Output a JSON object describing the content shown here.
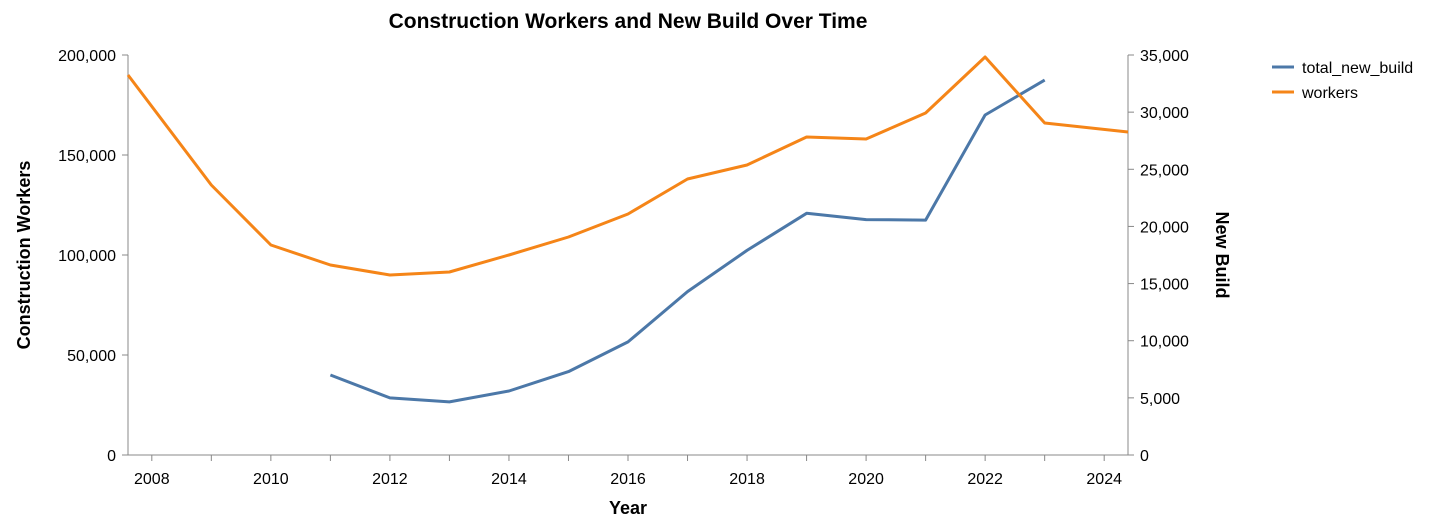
{
  "chart_data": {
    "type": "line",
    "title": "Construction Workers and New Build Over Time",
    "xlabel": "Year",
    "ylabel_left": "Construction Workers",
    "ylabel_right": "New Build",
    "xlim": [
      2007.6,
      2024.4
    ],
    "ylim_left": [
      0,
      200000
    ],
    "ylim_right": [
      0,
      35000
    ],
    "x_ticks": [
      2008,
      2010,
      2012,
      2014,
      2016,
      2018,
      2020,
      2022,
      2024
    ],
    "x_tick_labels": [
      "2008",
      "2010",
      "2012",
      "2014",
      "2016",
      "2018",
      "2020",
      "2022",
      "2024"
    ],
    "y_left_ticks": [
      0,
      50000,
      100000,
      150000,
      200000
    ],
    "y_left_tick_labels": [
      "0",
      "50,000",
      "100,000",
      "150,000",
      "200,000"
    ],
    "y_right_ticks": [
      0,
      5000,
      10000,
      15000,
      20000,
      25000,
      30000,
      35000
    ],
    "y_right_tick_labels": [
      "0",
      "5,000",
      "10,000",
      "15,000",
      "20,000",
      "25,000",
      "30,000",
      "35,000"
    ],
    "grid": false,
    "legend_position": "top-right",
    "series": [
      {
        "name": "total_new_build",
        "axis": "right",
        "color": "#4c78a8",
        "x": [
          2011,
          2012,
          2013,
          2014,
          2015,
          2016,
          2017,
          2018,
          2019,
          2020,
          2021,
          2022,
          2023
        ],
        "y": [
          7000,
          5000,
          4650,
          5600,
          7300,
          9900,
          14300,
          17900,
          21150,
          20600,
          20550,
          29750,
          32800
        ]
      },
      {
        "name": "workers",
        "axis": "left",
        "color": "#f58518",
        "x": [
          2007.6,
          2009,
          2010,
          2011,
          2012,
          2013,
          2014,
          2015,
          2016,
          2017,
          2018,
          2019,
          2020,
          2021,
          2022,
          2023,
          2024.4
        ],
        "y": [
          190000,
          135000,
          105000,
          95000,
          90000,
          91500,
          100000,
          109000,
          120500,
          138000,
          145000,
          159000,
          158000,
          171000,
          199000,
          166000,
          161500
        ]
      }
    ]
  }
}
